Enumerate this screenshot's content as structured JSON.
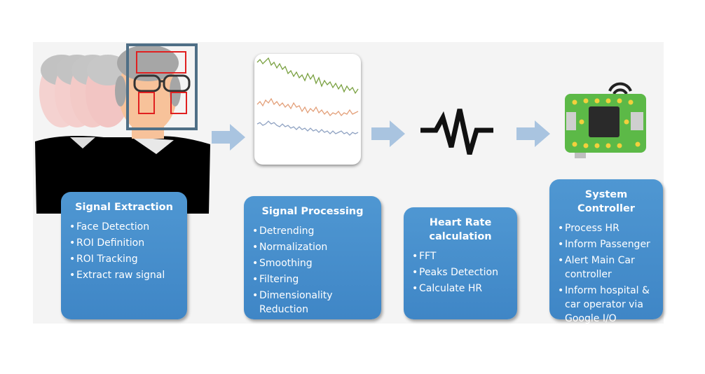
{
  "colors": {
    "box_top": "#4f97d2",
    "box_bottom": "#3f86c6",
    "arrow": "#a9c4e0",
    "board_green": "#5cb947",
    "chip": "#2a2a2a",
    "signal_green": "#79a040",
    "signal_orange": "#e3a07a",
    "signal_blue": "#8fa2c2",
    "roi_red": "#e02020",
    "face_box": "#4f6f86"
  },
  "icons": [
    "person-face-icon",
    "signal-plot-icon",
    "heartbeat-icon",
    "circuit-board-icon",
    "wifi-icon",
    "arrow-right-icon"
  ],
  "stages": [
    {
      "title": "Signal Extraction",
      "items": [
        "Face Detection",
        "ROI Definition",
        "ROI Tracking",
        "Extract raw signal"
      ]
    },
    {
      "title": "Signal Processing",
      "items": [
        "Detrending",
        "Normalization",
        "Smoothing",
        "Filtering",
        "Dimensionality Reduction"
      ]
    },
    {
      "title": "Heart Rate calculation",
      "items": [
        "FFT",
        "Peaks Detection",
        "Calculate HR"
      ]
    },
    {
      "title": "System Controller",
      "items": [
        "Process HR",
        "Inform Passenger",
        "Alert Main Car controller",
        "Inform hospital & car operator via Google I/O"
      ]
    }
  ]
}
